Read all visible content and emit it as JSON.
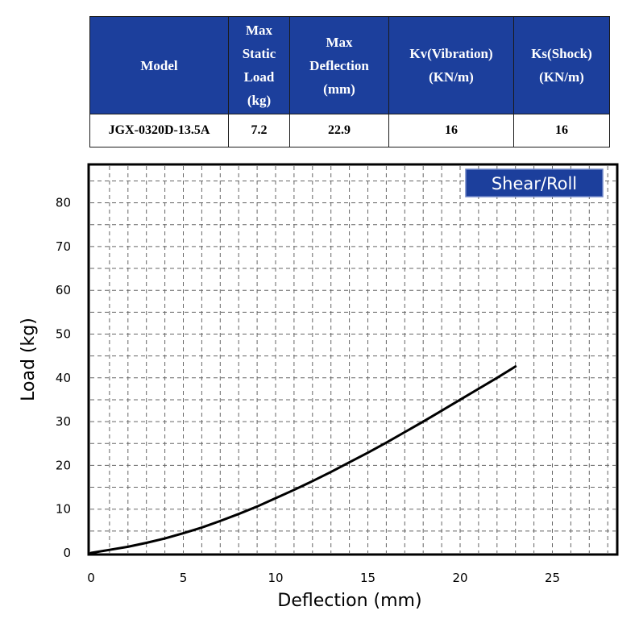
{
  "table": {
    "headers": [
      "Model",
      "Max\nStatic\nLoad\n(kg)",
      "Max\nDeflection\n(mm)",
      "Kv(Vibration)\n(KN/m)",
      "Ks(Shock)\n(KN/m)"
    ],
    "rows": [
      [
        "JGX-0320D-13.5A",
        "7.2",
        "22.9",
        "16",
        "16"
      ]
    ],
    "header_bg": "#1c3f9c",
    "header_text_color": "#ffffff"
  },
  "chart_data": {
    "type": "line",
    "title": "",
    "legend_label": "Shear/Roll",
    "legend_placement": "top-right",
    "legend_bg": "#1c3f9c",
    "xlabel": "Deflection (mm)",
    "ylabel": "Load (kg)",
    "xlim": [
      0,
      28
    ],
    "ylim": [
      0,
      88
    ],
    "xticks": [
      0,
      5,
      10,
      15,
      20,
      25
    ],
    "yticks": [
      0,
      10,
      20,
      30,
      40,
      50,
      60,
      70,
      80
    ],
    "grid": true,
    "grid_style": "dashed",
    "series": [
      {
        "color": "#000000",
        "x": [
          0,
          1,
          2,
          3,
          4,
          5,
          6,
          7,
          8,
          9,
          10,
          11,
          12,
          13,
          14,
          15,
          16,
          17,
          18,
          19,
          20,
          21,
          22,
          23
        ],
        "y": [
          0,
          0.7,
          1.4,
          2.3,
          3.3,
          4.5,
          5.8,
          7.3,
          8.9,
          10.6,
          12.5,
          14.4,
          16.4,
          18.5,
          20.7,
          22.9,
          25.2,
          27.6,
          30.0,
          32.5,
          35.0,
          37.5,
          40.0,
          42.6
        ]
      }
    ]
  }
}
